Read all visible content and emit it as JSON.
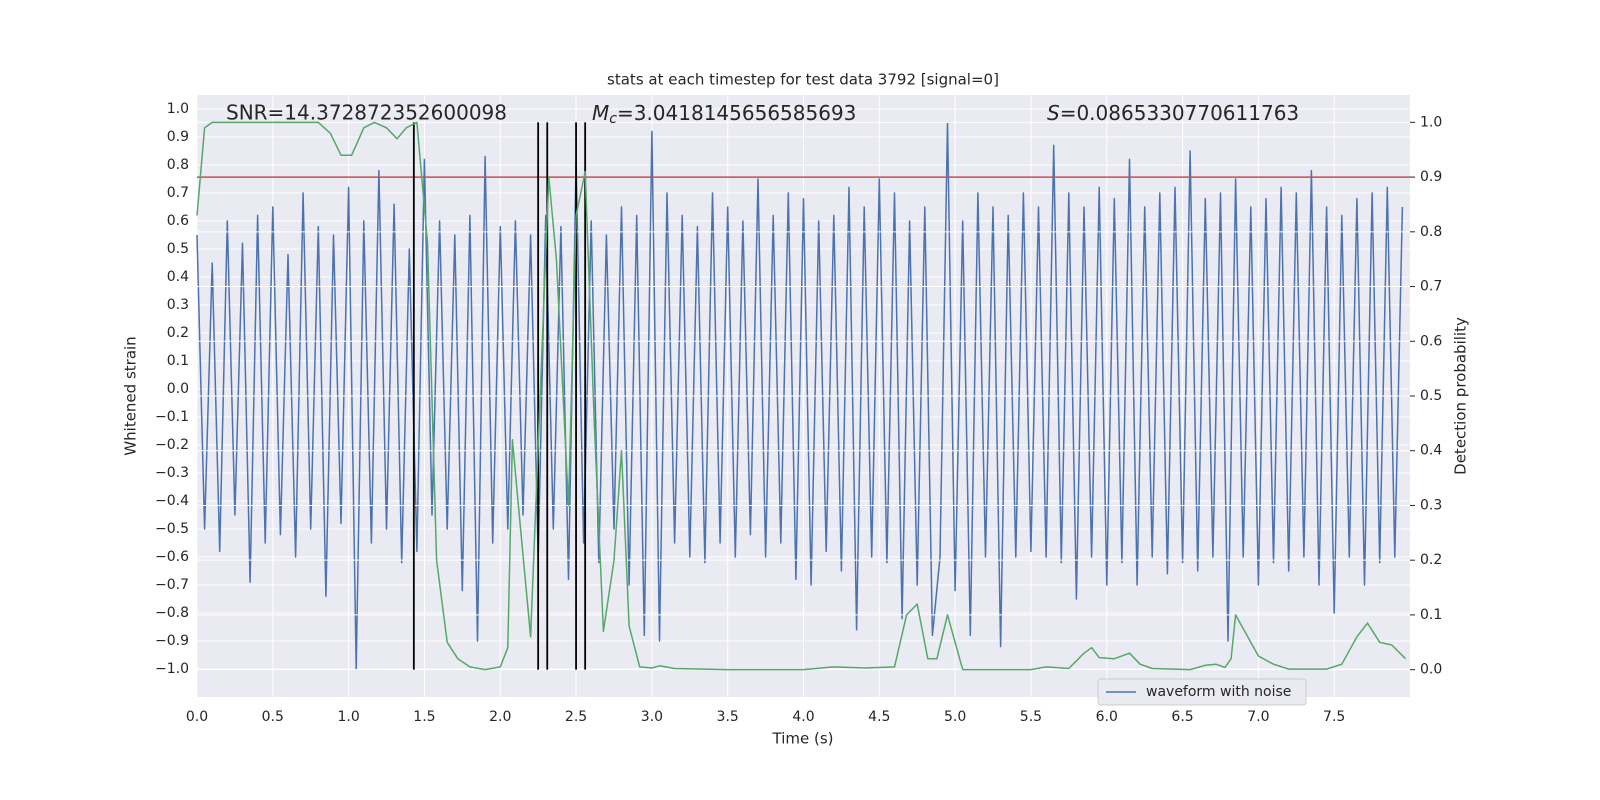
{
  "chart_data": {
    "type": "line",
    "title": "stats at each timestep for test data 3792 [signal=0]",
    "xlabel": "Time (s)",
    "ylabel": "Whitened strain",
    "y2label": "Detection probability",
    "grid": true,
    "legend": "lower right",
    "xlim": [
      0,
      8
    ],
    "ylim": [
      -1.1,
      1.05
    ],
    "y2lim": [
      -0.05,
      1.05
    ],
    "xticks": [
      {
        "value": 0,
        "label": "0.0"
      },
      0.5,
      {
        "value": 1,
        "label": "1.0"
      },
      1.5,
      {
        "value": 2,
        "label": "2.0"
      },
      2.5,
      {
        "value": 3,
        "label": "3.0"
      },
      3.5,
      {
        "value": 4,
        "label": "4.0"
      },
      4.5,
      {
        "value": 5,
        "label": "5.0"
      },
      5.5,
      {
        "value": 6,
        "label": "6.0"
      },
      6.5,
      {
        "value": 7,
        "label": "7.0"
      },
      7.5
    ],
    "yticks": [
      {
        "value": -1,
        "label": "−1.0"
      },
      {
        "value": -0.9,
        "label": "−0.9"
      },
      {
        "value": -0.8,
        "label": "−0.8"
      },
      {
        "value": -0.7,
        "label": "−0.7"
      },
      {
        "value": -0.6,
        "label": "−0.6"
      },
      {
        "value": -0.5,
        "label": "−0.5"
      },
      {
        "value": -0.4,
        "label": "−0.4"
      },
      {
        "value": -0.3,
        "label": "−0.3"
      },
      {
        "value": -0.2,
        "label": "−0.2"
      },
      {
        "value": -0.1,
        "label": "−0.1"
      },
      {
        "value": 0,
        "label": "0.0"
      },
      0.1,
      0.2,
      0.3,
      0.4,
      0.5,
      0.6,
      0.7,
      0.8,
      0.9,
      {
        "value": 1,
        "label": "1.0"
      }
    ],
    "y2ticks": [
      {
        "value": 0,
        "label": "0.0"
      },
      0.1,
      0.2,
      0.3,
      0.4,
      0.5,
      0.6,
      0.7,
      0.8,
      0.9,
      {
        "value": 1,
        "label": "1.0"
      }
    ],
    "annotations": [
      {
        "text": "SNR=14.372872352600098"
      },
      {
        "symbol": "M",
        "subscript": "c",
        "text": "=3.0418145656585693"
      },
      {
        "symbol": "S",
        "text": "=0.0865330770611763"
      }
    ],
    "threshold": {
      "value": 0.9,
      "axis": "y2",
      "color": "#c44e52"
    },
    "markers": {
      "color": "#000000",
      "x": [
        1.43,
        2.25,
        2.31,
        2.5,
        2.56
      ],
      "y2_range": [
        0,
        1
      ]
    },
    "series": [
      {
        "name": "waveform with noise",
        "color": "#4c72b0",
        "axis": "y",
        "x": [
          0,
          0.05,
          0.1,
          0.15,
          0.2,
          0.25,
          0.3,
          0.35,
          0.4,
          0.45,
          0.5,
          0.55,
          0.6,
          0.65,
          0.7,
          0.75,
          0.8,
          0.85,
          0.9,
          0.95,
          1,
          1.05,
          1.1,
          1.15,
          1.2,
          1.25,
          1.3,
          1.35,
          1.4,
          1.45,
          1.5,
          1.55,
          1.6,
          1.65,
          1.7,
          1.75,
          1.8,
          1.85,
          1.9,
          1.95,
          2,
          2.05,
          2.1,
          2.15,
          2.2,
          2.25,
          2.3,
          2.35,
          2.4,
          2.45,
          2.5,
          2.55,
          2.6,
          2.65,
          2.7,
          2.75,
          2.8,
          2.85,
          2.9,
          2.95,
          3,
          3.05,
          3.1,
          3.15,
          3.2,
          3.25,
          3.3,
          3.35,
          3.4,
          3.45,
          3.5,
          3.55,
          3.6,
          3.65,
          3.7,
          3.75,
          3.8,
          3.85,
          3.9,
          3.95,
          4,
          4.05,
          4.1,
          4.15,
          4.2,
          4.25,
          4.3,
          4.35,
          4.4,
          4.45,
          4.5,
          4.55,
          4.6,
          4.65,
          4.7,
          4.75,
          4.8,
          4.85,
          4.9,
          4.95,
          5,
          5.05,
          5.1,
          5.15,
          5.2,
          5.25,
          5.3,
          5.35,
          5.4,
          5.45,
          5.5,
          5.55,
          5.6,
          5.65,
          5.7,
          5.75,
          5.8,
          5.85,
          5.9,
          5.95,
          6,
          6.05,
          6.1,
          6.15,
          6.2,
          6.25,
          6.3,
          6.35,
          6.4,
          6.45,
          6.5,
          6.55,
          6.6,
          6.65,
          6.7,
          6.75,
          6.8,
          6.85,
          6.9,
          6.95,
          7,
          7.05,
          7.1,
          7.15,
          7.2,
          7.25,
          7.3,
          7.35,
          7.4,
          7.45,
          7.5,
          7.55,
          7.6,
          7.65,
          7.7,
          7.75,
          7.8,
          7.85,
          7.9,
          7.95
        ],
        "values": [
          0.55,
          -0.5,
          0.45,
          -0.58,
          0.6,
          -0.45,
          0.52,
          -0.69,
          0.62,
          -0.55,
          0.65,
          -0.52,
          0.48,
          -0.6,
          0.7,
          -0.5,
          0.58,
          -0.74,
          0.55,
          -0.48,
          0.72,
          -1.0,
          0.6,
          -0.55,
          0.78,
          -0.5,
          0.66,
          -0.62,
          0.5,
          -0.58,
          0.82,
          -0.45,
          0.6,
          -0.5,
          0.55,
          -0.72,
          0.62,
          -0.9,
          0.83,
          -0.55,
          0.58,
          -0.5,
          0.6,
          -0.45,
          0.55,
          -0.6,
          0.62,
          -0.5,
          0.58,
          -0.68,
          0.81,
          -0.55,
          0.6,
          -0.62,
          0.55,
          -0.5,
          0.65,
          -0.7,
          0.62,
          -0.88,
          0.92,
          -0.9,
          0.7,
          -0.55,
          0.62,
          -0.6,
          0.58,
          -0.62,
          0.7,
          -0.55,
          0.65,
          -0.6,
          0.6,
          -0.52,
          0.75,
          -0.6,
          0.62,
          -0.55,
          0.7,
          -0.68,
          0.68,
          -0.7,
          0.6,
          -0.58,
          0.62,
          -0.65,
          0.72,
          -0.86,
          0.65,
          -0.6,
          0.75,
          -0.62,
          0.7,
          -0.82,
          0.6,
          -0.7,
          0.65,
          -0.88,
          -0.6,
          0.95,
          -0.72,
          0.6,
          -0.88,
          0.7,
          -0.6,
          0.65,
          -0.92,
          0.62,
          -0.6,
          0.7,
          -0.58,
          0.65,
          -0.6,
          0.87,
          -0.62,
          0.7,
          -0.75,
          0.65,
          -0.6,
          0.72,
          -0.7,
          0.68,
          -0.62,
          0.82,
          -0.7,
          0.65,
          -0.6,
          0.7,
          -0.66,
          0.72,
          -0.62,
          0.85,
          -0.65,
          0.68,
          -0.6,
          0.7,
          -0.9,
          0.75,
          -0.6,
          0.65,
          -0.7,
          0.68,
          -0.62,
          0.72,
          -0.65,
          0.7,
          -0.6,
          0.78,
          -0.7,
          0.65,
          -0.8,
          0.62,
          -0.6,
          0.68,
          -0.7,
          0.7,
          -0.62,
          0.72,
          -0.6,
          0.65
        ]
      },
      {
        "color": "#55a868",
        "axis": "y2",
        "x": [
          0,
          0.05,
          0.1,
          0.8,
          0.88,
          0.95,
          1.02,
          1.1,
          1.17,
          1.25,
          1.32,
          1.38,
          1.45,
          1.52,
          1.58,
          1.65,
          1.72,
          1.8,
          1.9,
          2,
          2.05,
          2.08,
          2.12,
          2.2,
          2.32,
          2.37,
          2.45,
          2.5,
          2.56,
          2.62,
          2.68,
          2.75,
          2.8,
          2.85,
          2.92,
          3,
          3.05,
          3.15,
          3.5,
          4,
          4.2,
          4.4,
          4.6,
          4.68,
          4.75,
          4.82,
          4.88,
          4.95,
          5.05,
          5.5,
          5.6,
          5.75,
          5.85,
          5.9,
          5.95,
          6.05,
          6.15,
          6.22,
          6.3,
          6.55,
          6.65,
          6.72,
          6.78,
          6.82,
          6.85,
          7,
          7.1,
          7.2,
          7.45,
          7.55,
          7.65,
          7.72,
          7.8,
          7.88,
          7.97
        ],
        "values": [
          0.83,
          0.99,
          1.0,
          1.0,
          0.98,
          0.94,
          0.94,
          0.99,
          1.0,
          0.99,
          0.97,
          0.99,
          1.0,
          0.78,
          0.2,
          0.05,
          0.02,
          0.005,
          0.0,
          0.005,
          0.04,
          0.42,
          0.3,
          0.06,
          0.9,
          0.75,
          0.3,
          0.83,
          0.91,
          0.45,
          0.07,
          0.2,
          0.4,
          0.08,
          0.005,
          0.003,
          0.007,
          0.002,
          0.0,
          0.0,
          0.005,
          0.003,
          0.005,
          0.1,
          0.12,
          0.02,
          0.02,
          0.1,
          0.0,
          0.0,
          0.005,
          0.002,
          0.03,
          0.04,
          0.022,
          0.02,
          0.03,
          0.01,
          0.002,
          0.0,
          0.008,
          0.01,
          0.004,
          0.02,
          0.1,
          0.025,
          0.01,
          0.001,
          0.001,
          0.01,
          0.06,
          0.085,
          0.05,
          0.045,
          0.02
        ]
      }
    ]
  }
}
